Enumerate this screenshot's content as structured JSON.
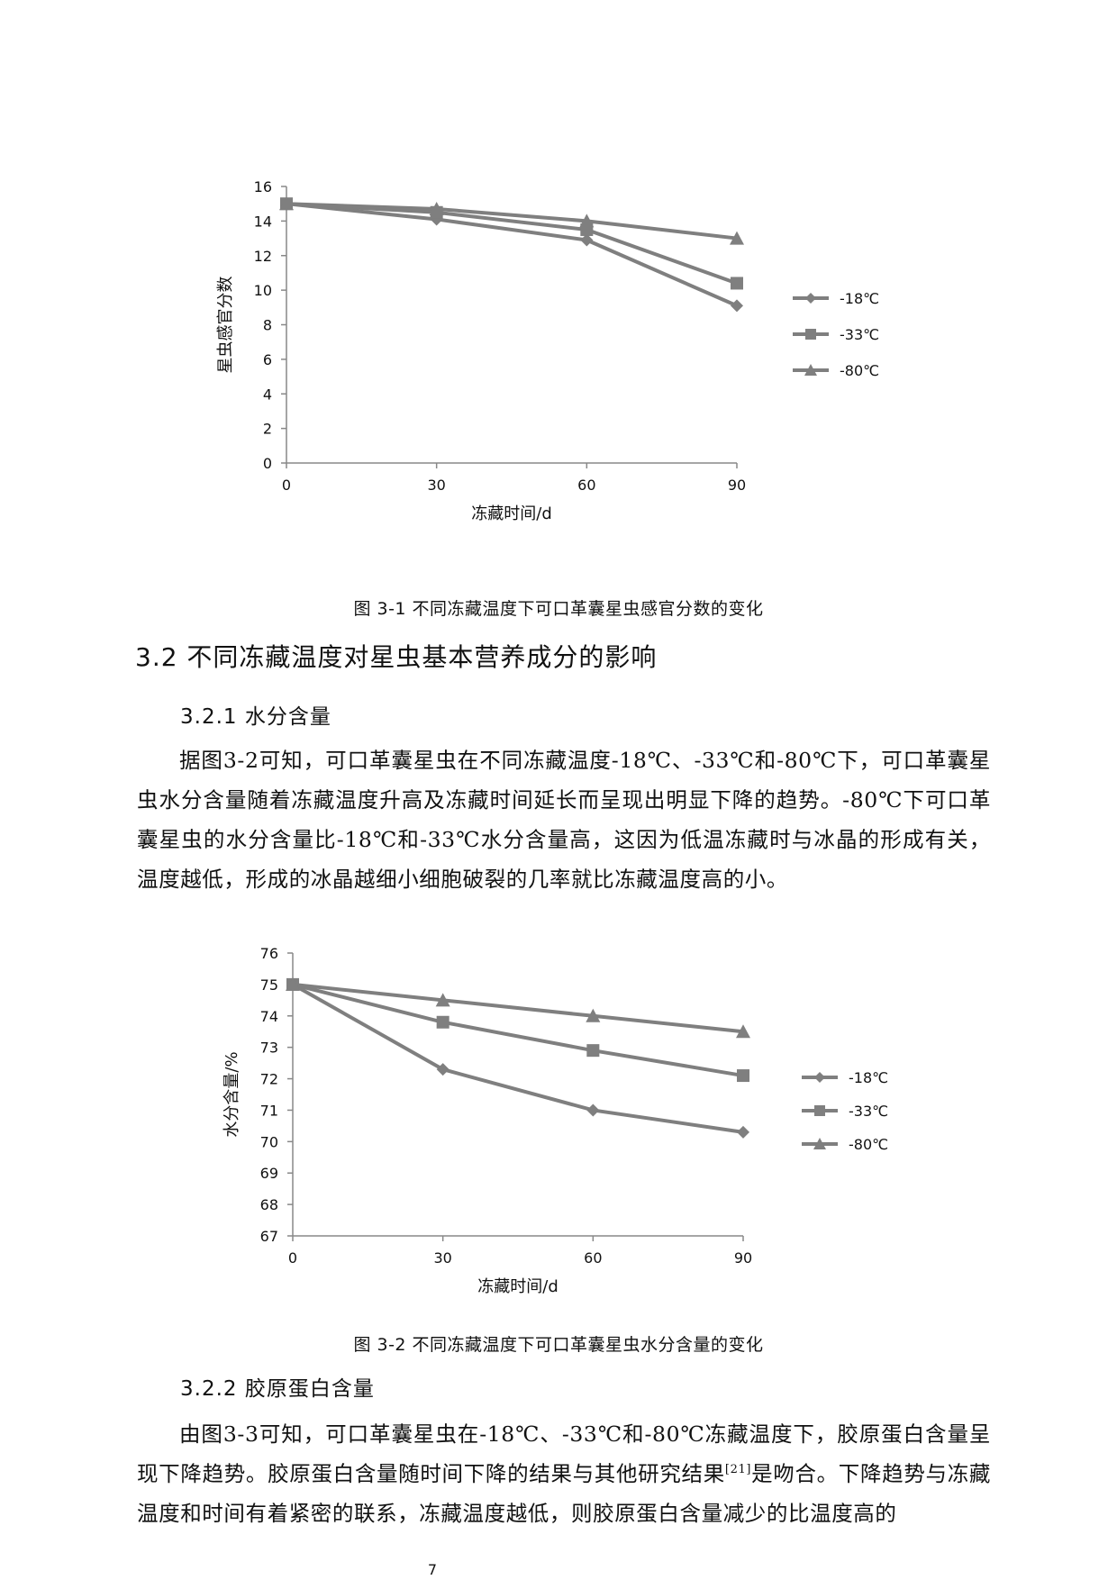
{
  "chart_data": [
    {
      "type": "line",
      "title": "",
      "xlabel": "冻藏时间/d",
      "ylabel": "星虫感官分数",
      "x": [
        0,
        30,
        60,
        90
      ],
      "xticks": [
        "0",
        "30",
        "60",
        "90"
      ],
      "ylim": [
        0,
        16
      ],
      "yticks": [
        "0",
        "2",
        "4",
        "6",
        "8",
        "10",
        "12",
        "14",
        "16"
      ],
      "legend_position": "right",
      "series": [
        {
          "name": "-18℃",
          "marker": "diamond",
          "values": [
            15.0,
            14.1,
            12.9,
            9.1
          ]
        },
        {
          "name": "-33℃",
          "marker": "square",
          "values": [
            15.0,
            14.5,
            13.5,
            10.4
          ]
        },
        {
          "name": "-80℃",
          "marker": "triangle",
          "values": [
            15.0,
            14.7,
            14.0,
            13.0
          ]
        }
      ]
    },
    {
      "type": "line",
      "title": "",
      "xlabel": "冻藏时间/d",
      "ylabel": "水分含量/%",
      "x": [
        0,
        30,
        60,
        90
      ],
      "xticks": [
        "0",
        "30",
        "60",
        "90"
      ],
      "ylim": [
        67,
        76
      ],
      "yticks": [
        "67",
        "68",
        "69",
        "70",
        "71",
        "72",
        "73",
        "74",
        "75",
        "76"
      ],
      "legend_position": "right",
      "series": [
        {
          "name": "-18℃",
          "marker": "diamond",
          "values": [
            75.0,
            72.3,
            71.0,
            70.3
          ]
        },
        {
          "name": "-33℃",
          "marker": "square",
          "values": [
            75.0,
            73.8,
            72.9,
            72.1
          ]
        },
        {
          "name": "-80℃",
          "marker": "triangle",
          "values": [
            75.0,
            74.5,
            74.0,
            73.5
          ]
        }
      ]
    }
  ],
  "captions": {
    "fig1": "图 3-1 不同冻藏温度下可口革囊星虫感官分数的变化",
    "fig2": "图 3-2 不同冻藏温度下可口革囊星虫水分含量的变化"
  },
  "headings": {
    "s32": "3.2 不同冻藏温度对星虫基本营养成分的影响",
    "s321": "3.2.1 水分含量",
    "s322": "3.2.2 胶原蛋白含量"
  },
  "paragraphs": {
    "p1": "据图3-2可知，可口革囊星虫在不同冻藏温度-18℃、-33℃和-80℃下，可口革囊星虫水分含量随着冻藏温度升高及冻藏时间延长而呈现出明显下降的趋势。-80℃下可口革囊星虫的水分含量比-18℃和-33℃水分含量高，这因为低温冻藏时与冰晶的形成有关，温度越低，形成的冰晶越细小细胞破裂的几率就比冻藏温度高的小。",
    "p2a": "由图3-3可知，可口革囊星虫在-18℃、-33℃和-80℃冻藏温度下，胶原蛋白含量呈现下降趋势。胶原蛋白含量随时间下降的结果与其他研究结果",
    "p2ref": "[21]",
    "p2b": "是吻合。下降趋势与冻藏温度和时间有着紧密的联系，冻藏温度越低，则胶原蛋白含量减少的比温度高的"
  },
  "page_number": "7",
  "colors": {
    "series": "#7f7f7f",
    "axis": "#888888",
    "text": "#111111"
  }
}
